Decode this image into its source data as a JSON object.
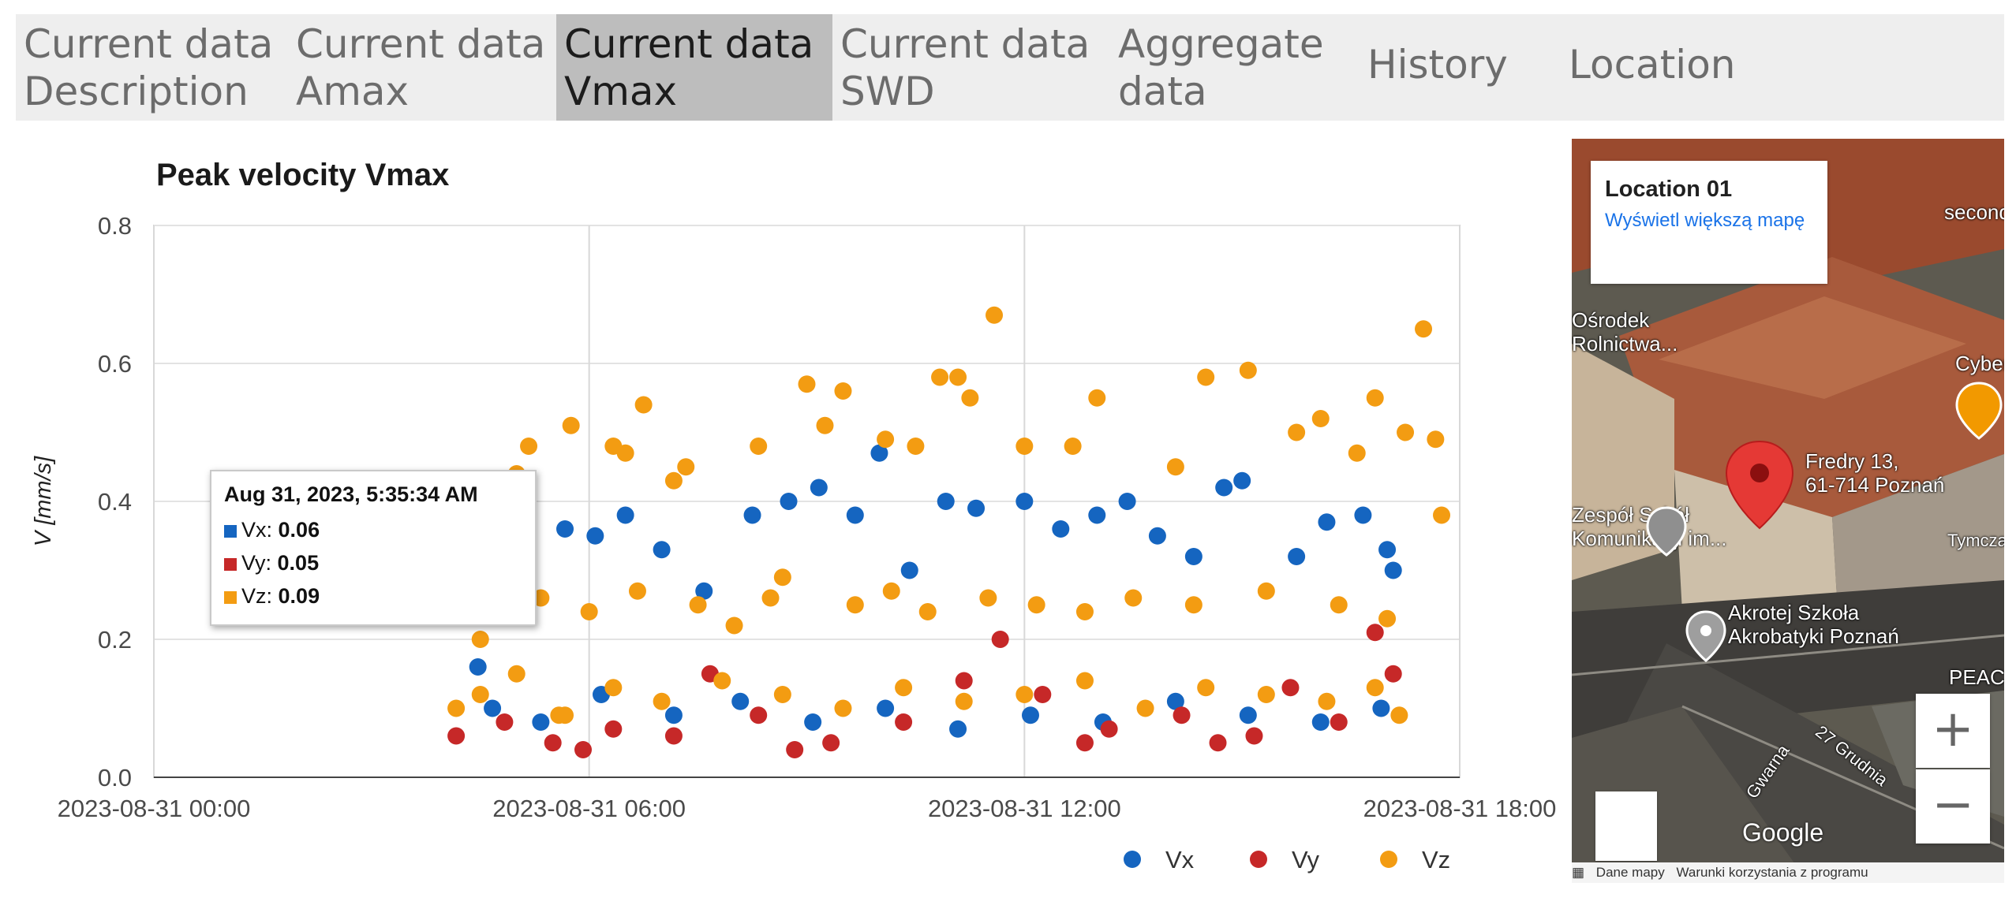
{
  "tabs": [
    {
      "label": "Current data\nDescription",
      "active": false
    },
    {
      "label": "Current data\nAmax",
      "active": false
    },
    {
      "label": "Current data\nVmax",
      "active": true
    },
    {
      "label": "Current data\nSWD",
      "active": false
    },
    {
      "label": "Aggregate\ndata",
      "active": false
    },
    {
      "label": "History",
      "active": false
    },
    {
      "label": "Location",
      "active": false
    }
  ],
  "chart_data": {
    "type": "scatter",
    "title": "Peak velocity Vmax",
    "ylabel": "V [mm/s]",
    "xlabel": "",
    "x_ticks": [
      "2023-08-31 00:00",
      "2023-08-31 06:00",
      "2023-08-31 12:00",
      "2023-08-31 18:00"
    ],
    "y_ticks": [
      "0.0",
      "0.2",
      "0.4",
      "0.6",
      "0.8"
    ],
    "ylim": [
      0,
      0.8
    ],
    "xlim": [
      "2023-08-31 00:00",
      "2023-08-31 18:00"
    ],
    "grid": true,
    "legend_position": "bottom-right",
    "series": [
      {
        "name": "Vx",
        "color": "#1565c0",
        "points": [
          [
            "2023-08-31 04:28",
            0.16
          ],
          [
            "2023-08-31 05:05",
            0.34
          ],
          [
            "2023-08-31 05:40",
            0.36
          ],
          [
            "2023-08-31 06:05",
            0.35
          ],
          [
            "2023-08-31 06:30",
            0.38
          ],
          [
            "2023-08-31 07:00",
            0.33
          ],
          [
            "2023-08-31 07:35",
            0.27
          ],
          [
            "2023-08-31 08:15",
            0.38
          ],
          [
            "2023-08-31 08:45",
            0.4
          ],
          [
            "2023-08-31 09:10",
            0.42
          ],
          [
            "2023-08-31 09:40",
            0.38
          ],
          [
            "2023-08-31 10:00",
            0.47
          ],
          [
            "2023-08-31 10:25",
            0.3
          ],
          [
            "2023-08-31 10:55",
            0.4
          ],
          [
            "2023-08-31 11:20",
            0.39
          ],
          [
            "2023-08-31 12:00",
            0.4
          ],
          [
            "2023-08-31 12:30",
            0.36
          ],
          [
            "2023-08-31 13:00",
            0.38
          ],
          [
            "2023-08-31 13:25",
            0.4
          ],
          [
            "2023-08-31 13:50",
            0.35
          ],
          [
            "2023-08-31 14:20",
            0.32
          ],
          [
            "2023-08-31 14:45",
            0.42
          ],
          [
            "2023-08-31 15:00",
            0.43
          ],
          [
            "2023-08-31 15:45",
            0.32
          ],
          [
            "2023-08-31 16:10",
            0.37
          ],
          [
            "2023-08-31 16:40",
            0.38
          ],
          [
            "2023-08-31 17:00",
            0.33
          ],
          [
            "2023-08-31 17:05",
            0.3
          ],
          [
            "2023-08-31 04:40",
            0.1
          ],
          [
            "2023-08-31 05:20",
            0.08
          ],
          [
            "2023-08-31 06:10",
            0.12
          ],
          [
            "2023-08-31 07:10",
            0.09
          ],
          [
            "2023-08-31 08:05",
            0.11
          ],
          [
            "2023-08-31 09:05",
            0.08
          ],
          [
            "2023-08-31 10:05",
            0.1
          ],
          [
            "2023-08-31 11:05",
            0.07
          ],
          [
            "2023-08-31 12:05",
            0.09
          ],
          [
            "2023-08-31 13:05",
            0.08
          ],
          [
            "2023-08-31 14:05",
            0.11
          ],
          [
            "2023-08-31 15:05",
            0.09
          ],
          [
            "2023-08-31 16:05",
            0.08
          ],
          [
            "2023-08-31 16:55",
            0.1
          ]
        ]
      },
      {
        "name": "Vy",
        "color": "#c62828",
        "points": [
          [
            "2023-08-31 04:10",
            0.06
          ],
          [
            "2023-08-31 04:50",
            0.08
          ],
          [
            "2023-08-31 05:30",
            0.05
          ],
          [
            "2023-08-31 06:20",
            0.07
          ],
          [
            "2023-08-31 07:10",
            0.06
          ],
          [
            "2023-08-31 07:40",
            0.15
          ],
          [
            "2023-08-31 08:20",
            0.09
          ],
          [
            "2023-08-31 09:20",
            0.05
          ],
          [
            "2023-08-31 10:20",
            0.08
          ],
          [
            "2023-08-31 11:10",
            0.14
          ],
          [
            "2023-08-31 11:40",
            0.2
          ],
          [
            "2023-08-31 12:15",
            0.12
          ],
          [
            "2023-08-31 13:10",
            0.07
          ],
          [
            "2023-08-31 14:10",
            0.09
          ],
          [
            "2023-08-31 15:10",
            0.06
          ],
          [
            "2023-08-31 15:40",
            0.13
          ],
          [
            "2023-08-31 16:20",
            0.08
          ],
          [
            "2023-08-31 16:50",
            0.21
          ],
          [
            "2023-08-31 17:05",
            0.15
          ],
          [
            "2023-08-31 05:55",
            0.04
          ],
          [
            "2023-08-31 08:50",
            0.04
          ],
          [
            "2023-08-31 12:50",
            0.05
          ],
          [
            "2023-08-31 14:40",
            0.05
          ]
        ]
      },
      {
        "name": "Vz",
        "color": "#f39c12",
        "points": [
          [
            "2023-08-31 04:10",
            0.1
          ],
          [
            "2023-08-31 04:30",
            0.2
          ],
          [
            "2023-08-31 04:45",
            0.32
          ],
          [
            "2023-08-31 05:00",
            0.44
          ],
          [
            "2023-08-31 05:10",
            0.48
          ],
          [
            "2023-08-31 05:35",
            0.09
          ],
          [
            "2023-08-31 05:45",
            0.51
          ],
          [
            "2023-08-31 06:20",
            0.48
          ],
          [
            "2023-08-31 06:30",
            0.47
          ],
          [
            "2023-08-31 06:45",
            0.54
          ],
          [
            "2023-08-31 07:10",
            0.43
          ],
          [
            "2023-08-31 07:20",
            0.45
          ],
          [
            "2023-08-31 08:20",
            0.48
          ],
          [
            "2023-08-31 08:40",
            0.29
          ],
          [
            "2023-08-31 09:00",
            0.57
          ],
          [
            "2023-08-31 09:15",
            0.51
          ],
          [
            "2023-08-31 09:30",
            0.56
          ],
          [
            "2023-08-31 10:05",
            0.49
          ],
          [
            "2023-08-31 10:30",
            0.48
          ],
          [
            "2023-08-31 10:50",
            0.58
          ],
          [
            "2023-08-31 11:05",
            0.58
          ],
          [
            "2023-08-31 11:15",
            0.55
          ],
          [
            "2023-08-31 11:35",
            0.67
          ],
          [
            "2023-08-31 12:00",
            0.48
          ],
          [
            "2023-08-31 12:40",
            0.48
          ],
          [
            "2023-08-31 13:00",
            0.55
          ],
          [
            "2023-08-31 14:05",
            0.45
          ],
          [
            "2023-08-31 14:30",
            0.58
          ],
          [
            "2023-08-31 15:05",
            0.59
          ],
          [
            "2023-08-31 15:45",
            0.5
          ],
          [
            "2023-08-31 16:05",
            0.52
          ],
          [
            "2023-08-31 16:35",
            0.47
          ],
          [
            "2023-08-31 16:50",
            0.55
          ],
          [
            "2023-08-31 17:15",
            0.5
          ],
          [
            "2023-08-31 17:30",
            0.65
          ],
          [
            "2023-08-31 17:40",
            0.49
          ],
          [
            "2023-08-31 17:45",
            0.38
          ],
          [
            "2023-08-31 05:20",
            0.26
          ],
          [
            "2023-08-31 06:00",
            0.24
          ],
          [
            "2023-08-31 06:40",
            0.27
          ],
          [
            "2023-08-31 07:30",
            0.25
          ],
          [
            "2023-08-31 08:00",
            0.22
          ],
          [
            "2023-08-31 08:30",
            0.26
          ],
          [
            "2023-08-31 09:40",
            0.25
          ],
          [
            "2023-08-31 10:10",
            0.27
          ],
          [
            "2023-08-31 10:40",
            0.24
          ],
          [
            "2023-08-31 11:30",
            0.26
          ],
          [
            "2023-08-31 12:10",
            0.25
          ],
          [
            "2023-08-31 12:50",
            0.24
          ],
          [
            "2023-08-31 13:30",
            0.26
          ],
          [
            "2023-08-31 14:20",
            0.25
          ],
          [
            "2023-08-31 15:20",
            0.27
          ],
          [
            "2023-08-31 16:20",
            0.25
          ],
          [
            "2023-08-31 17:00",
            0.23
          ],
          [
            "2023-08-31 04:30",
            0.12
          ],
          [
            "2023-08-31 05:00",
            0.15
          ],
          [
            "2023-08-31 05:40",
            0.09
          ],
          [
            "2023-08-31 06:20",
            0.13
          ],
          [
            "2023-08-31 07:00",
            0.11
          ],
          [
            "2023-08-31 07:50",
            0.14
          ],
          [
            "2023-08-31 08:40",
            0.12
          ],
          [
            "2023-08-31 09:30",
            0.1
          ],
          [
            "2023-08-31 10:20",
            0.13
          ],
          [
            "2023-08-31 11:10",
            0.11
          ],
          [
            "2023-08-31 12:00",
            0.12
          ],
          [
            "2023-08-31 12:50",
            0.14
          ],
          [
            "2023-08-31 13:40",
            0.1
          ],
          [
            "2023-08-31 14:30",
            0.13
          ],
          [
            "2023-08-31 15:20",
            0.12
          ],
          [
            "2023-08-31 16:10",
            0.11
          ],
          [
            "2023-08-31 16:50",
            0.13
          ],
          [
            "2023-08-31 17:10",
            0.09
          ]
        ]
      }
    ],
    "tooltip": {
      "title": "Aug 31, 2023, 5:35:34 AM",
      "rows": [
        {
          "name": "Vx",
          "value": "0.06",
          "color": "#1565c0"
        },
        {
          "name": "Vy",
          "value": "0.05",
          "color": "#c62828"
        },
        {
          "name": "Vz",
          "value": "0.09",
          "color": "#f39c12"
        }
      ]
    }
  },
  "map": {
    "card_title": "Location 01",
    "card_link": "Wyświetl większą mapę",
    "pin_address_line1": "Fredry 13,",
    "pin_address_line2": "61-714 Poznań",
    "labels": {
      "osrodek": "Ośrodek\nRolnictwa...",
      "zespol": "Zespół Szkół\nKomunikacji im...",
      "akrotej": "Akrotej Szkoła\nAkrobatyki Poznań",
      "peac": "PEAC P",
      "cyber": "Cyber",
      "tymczas": "Tymczaso",
      "second": "second",
      "gwarna": "Gwarna",
      "grudnia": "27 Grudnia"
    },
    "zoom_in": "+",
    "zoom_out": "−",
    "google": "Google",
    "attribution": [
      "Dane mapy",
      "Warunki korzystania z programu"
    ],
    "pin_color": "#e53935"
  }
}
